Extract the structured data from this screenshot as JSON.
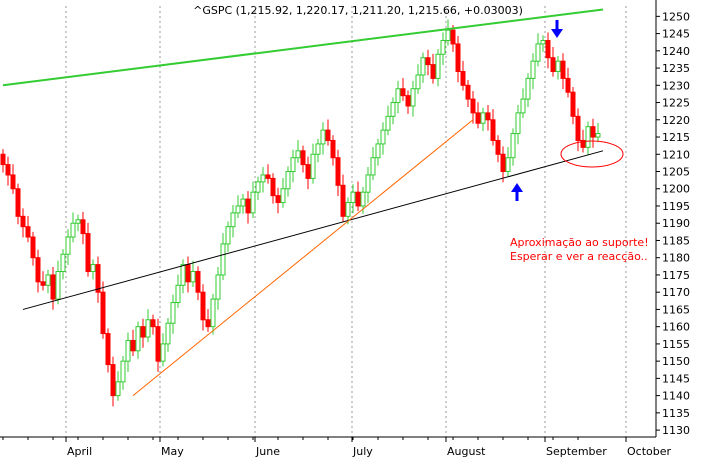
{
  "title": "^GSPC (1,215.92, 1,220.17, 1,211.20, 1,215.66, +0.03003)",
  "colors": {
    "up": "#33cc33",
    "down": "#ff0000",
    "resistance": "#33cc33",
    "support": "#000000",
    "trend": "#ff6600",
    "grid": "#999999",
    "arrow": "#0000ff",
    "note": "#ff0000"
  },
  "chart_data": {
    "type": "candlestick",
    "title": "^GSPC (1,215.92, 1,220.17, 1,211.20, 1,215.66, +0.03003)",
    "x_labels": [
      "April",
      "May",
      "June",
      "July",
      "August",
      "September",
      "October"
    ],
    "y_ticks": [
      1130,
      1135,
      1140,
      1145,
      1150,
      1155,
      1160,
      1165,
      1170,
      1175,
      1180,
      1185,
      1190,
      1195,
      1200,
      1205,
      1210,
      1215,
      1220,
      1225,
      1230,
      1235,
      1240,
      1245,
      1250
    ],
    "ylim": [
      1128,
      1253
    ],
    "y_axis_position": "right",
    "grid": "vertical-dotted",
    "closes": [
      1207,
      1204,
      1200,
      1192,
      1189,
      1186,
      1180,
      1173,
      1172,
      1175,
      1168,
      1176,
      1181,
      1186,
      1190,
      1191,
      1187,
      1176,
      1178,
      1170,
      1158,
      1149,
      1140,
      1144,
      1150,
      1156,
      1153,
      1160,
      1157,
      1162,
      1160,
      1150,
      1155,
      1161,
      1167,
      1172,
      1178,
      1173,
      1176,
      1170,
      1162,
      1160,
      1168,
      1175,
      1184,
      1189,
      1193,
      1195,
      1197,
      1193,
      1199,
      1202,
      1204,
      1203,
      1198,
      1196,
      1200,
      1205,
      1209,
      1211,
      1207,
      1203,
      1210,
      1213,
      1217,
      1214,
      1209,
      1201,
      1192,
      1196,
      1199,
      1195,
      1199,
      1204,
      1209,
      1213,
      1217,
      1221,
      1225,
      1229,
      1227,
      1224,
      1229,
      1233,
      1238,
      1236,
      1232,
      1239,
      1243,
      1246,
      1242,
      1234,
      1230,
      1226,
      1222,
      1219,
      1222,
      1220,
      1214,
      1210,
      1205,
      1209,
      1216,
      1222,
      1226,
      1232,
      1237,
      1242,
      1243,
      1238,
      1234,
      1237,
      1232,
      1228,
      1221,
      1214,
      1212,
      1218,
      1215,
      1216
    ],
    "annotations": {
      "note_line1": "Aproximação ao suporte!",
      "note_line2": "Esperar e ver a reacção.."
    },
    "lines": [
      {
        "name": "resistance",
        "from": [
          0,
          1230
        ],
        "to": [
          120,
          1252
        ]
      },
      {
        "name": "support",
        "from": [
          4,
          1165
        ],
        "to": [
          120,
          1211
        ]
      },
      {
        "name": "trend",
        "from": [
          26,
          1140
        ],
        "to": [
          94,
          1220
        ]
      }
    ]
  }
}
